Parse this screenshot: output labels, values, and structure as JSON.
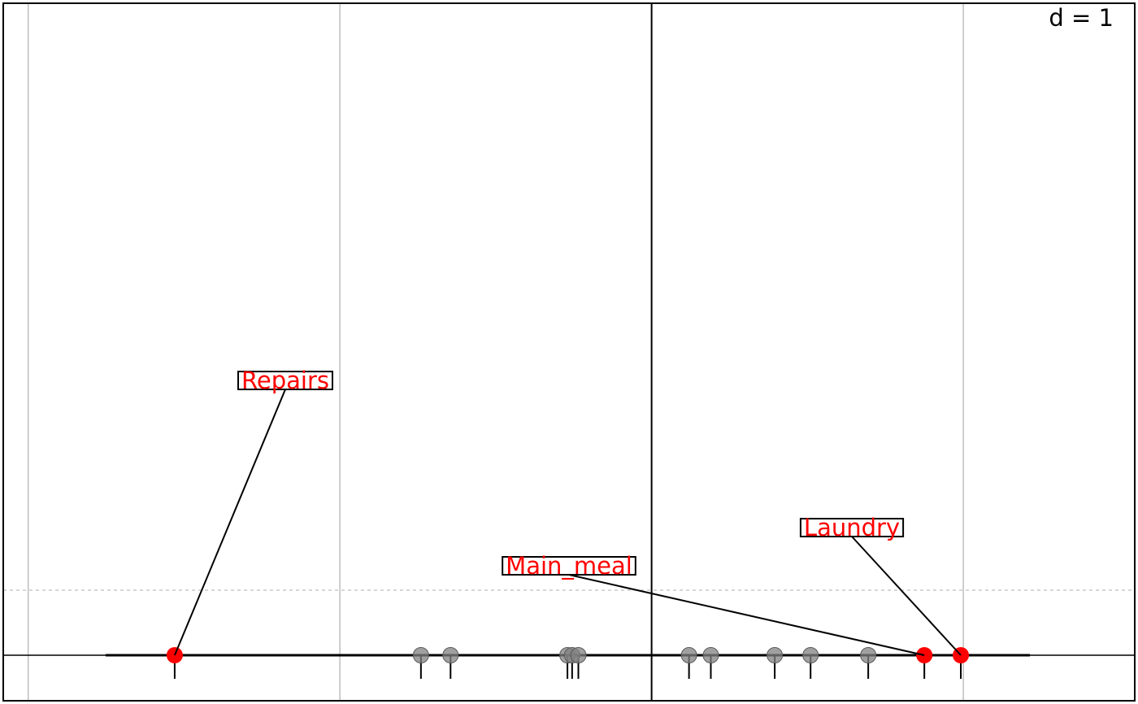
{
  "chart_data": {
    "type": "scatter",
    "title": "",
    "xlabel": "",
    "ylabel": "",
    "scale_label": "d = 1",
    "grid": true,
    "xlim": [
      -2.08,
      1.55
    ],
    "grid_lines": [
      -2,
      -1,
      0,
      1
    ],
    "reference_value": 0,
    "points": [
      {
        "x": -1.53,
        "highlight": true
      },
      {
        "x": -0.74,
        "highlight": false
      },
      {
        "x": -0.645,
        "highlight": false
      },
      {
        "x": -0.27,
        "highlight": false
      },
      {
        "x": -0.255,
        "highlight": false
      },
      {
        "x": -0.235,
        "highlight": false
      },
      {
        "x": 0.12,
        "highlight": false
      },
      {
        "x": 0.19,
        "highlight": false
      },
      {
        "x": 0.395,
        "highlight": false
      },
      {
        "x": 0.51,
        "highlight": false
      },
      {
        "x": 0.695,
        "highlight": false
      },
      {
        "x": 0.875,
        "highlight": true
      },
      {
        "x": 0.992,
        "highlight": true
      }
    ],
    "labels": [
      {
        "text": "Repairs",
        "x": -1.53
      },
      {
        "text": "Main_meal",
        "x": 0.875
      },
      {
        "text": "Laundry",
        "x": 0.992
      }
    ]
  },
  "colors": {
    "highlight": "#ff0000",
    "point": "#808080",
    "grid": "#bebebe",
    "axis": "#000000"
  }
}
